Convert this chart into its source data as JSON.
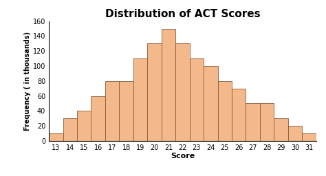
{
  "title": "Distribution of ACT Scores",
  "xlabel": "Score",
  "ylabel": "Frequency ( in thousands)",
  "scores": [
    13,
    14,
    15,
    16,
    17,
    18,
    19,
    20,
    21,
    22,
    23,
    24,
    25,
    26,
    27,
    28,
    29,
    30,
    31
  ],
  "values": [
    10,
    30,
    40,
    60,
    80,
    80,
    110,
    130,
    150,
    130,
    110,
    100,
    80,
    70,
    50,
    50,
    30,
    20,
    10
  ],
  "bar_color": "#F4B98A",
  "bar_edge_color": "#8B5A3A",
  "ylim": [
    0,
    160
  ],
  "yticks": [
    0,
    20,
    40,
    60,
    80,
    100,
    120,
    140,
    160
  ],
  "title_fontsize": 11,
  "label_fontsize": 8,
  "tick_fontsize": 7,
  "background_color": "#ffffff"
}
